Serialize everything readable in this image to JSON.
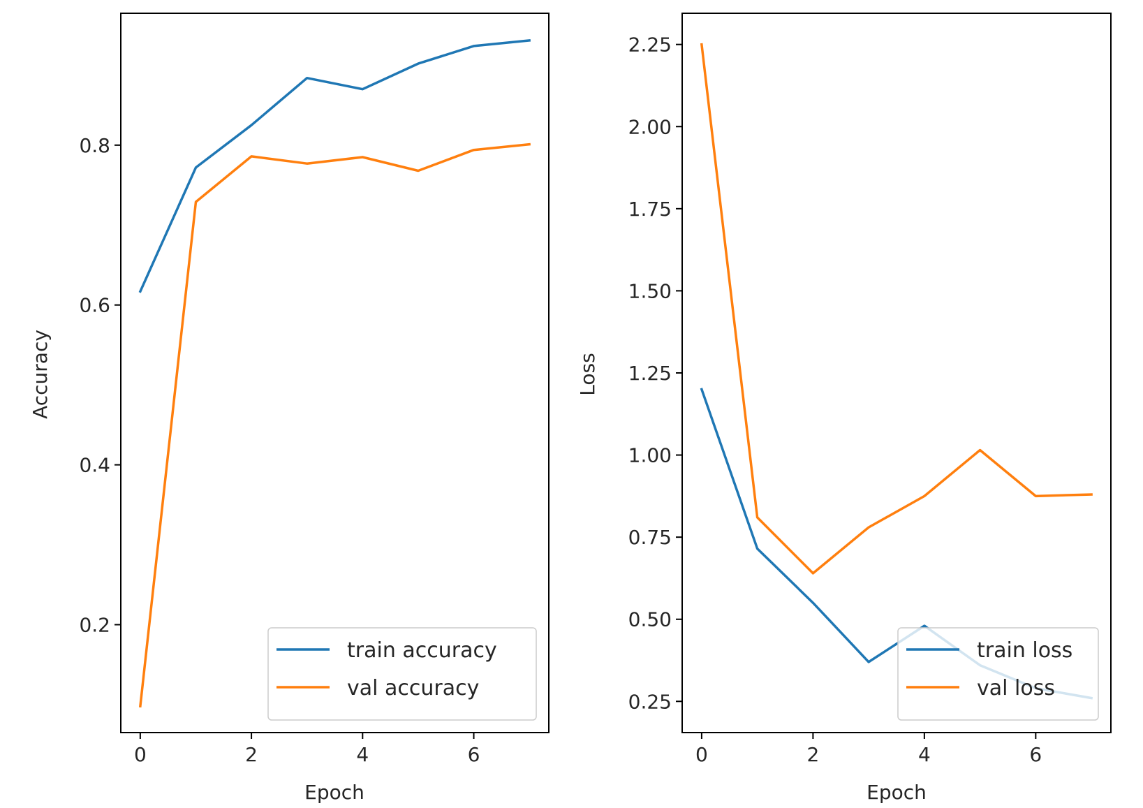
{
  "chart_data": [
    {
      "type": "line",
      "xlabel": "Epoch",
      "ylabel": "Accuracy",
      "xlim": [
        -0.35,
        7.35
      ],
      "ylim": [
        0.065,
        0.965
      ],
      "xticks": [
        0,
        2,
        4,
        6
      ],
      "xtick_labels": [
        "0",
        "2",
        "4",
        "6"
      ],
      "yticks": [
        0.2,
        0.4,
        0.6,
        0.8
      ],
      "ytick_labels": [
        "0.2",
        "0.4",
        "0.6",
        "0.8"
      ],
      "grid": false,
      "legend_position": "lower-right",
      "x": [
        0,
        1,
        2,
        3,
        4,
        5,
        6,
        7
      ],
      "series": [
        {
          "name": "train accuracy",
          "color": "#1f77b4",
          "values": [
            0.617,
            0.772,
            0.825,
            0.884,
            0.87,
            0.902,
            0.924,
            0.931
          ]
        },
        {
          "name": "val accuracy",
          "color": "#ff7f0e",
          "values": [
            0.098,
            0.729,
            0.786,
            0.777,
            0.785,
            0.768,
            0.794,
            0.801
          ]
        }
      ]
    },
    {
      "type": "line",
      "xlabel": "Epoch",
      "ylabel": "Loss",
      "xlim": [
        -0.35,
        7.35
      ],
      "ylim": [
        0.155,
        2.345
      ],
      "xticks": [
        0,
        2,
        4,
        6
      ],
      "xtick_labels": [
        "0",
        "2",
        "4",
        "6"
      ],
      "yticks": [
        0.25,
        0.5,
        0.75,
        1.0,
        1.25,
        1.5,
        1.75,
        2.0,
        2.25
      ],
      "ytick_labels": [
        "0.25",
        "0.50",
        "0.75",
        "1.00",
        "1.25",
        "1.50",
        "1.75",
        "2.00",
        "2.25"
      ],
      "grid": false,
      "legend_position": "lower-right",
      "x": [
        0,
        1,
        2,
        3,
        4,
        5,
        6,
        7
      ],
      "series": [
        {
          "name": "train loss",
          "color": "#1f77b4",
          "values": [
            1.2,
            0.715,
            0.55,
            0.37,
            0.48,
            0.36,
            0.29,
            0.26
          ]
        },
        {
          "name": "val loss",
          "color": "#ff7f0e",
          "values": [
            2.25,
            0.81,
            0.64,
            0.78,
            0.875,
            1.015,
            0.875,
            0.88
          ]
        }
      ]
    }
  ]
}
